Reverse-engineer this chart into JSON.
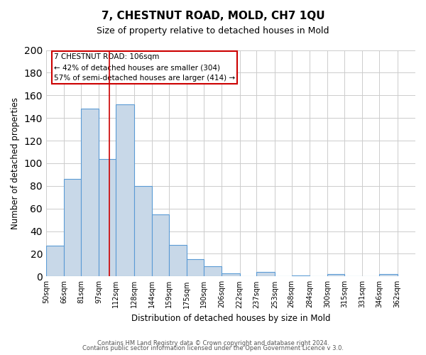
{
  "title": "7, CHESTNUT ROAD, MOLD, CH7 1QU",
  "subtitle": "Size of property relative to detached houses in Mold",
  "xlabel": "Distribution of detached houses by size in Mold",
  "ylabel": "Number of detached properties",
  "bar_values": [
    27,
    86,
    148,
    104,
    152,
    80,
    55,
    28,
    15,
    9,
    3,
    0,
    4,
    0,
    1,
    0,
    2,
    0,
    0,
    2
  ],
  "bin_labels": [
    "50sqm",
    "66sqm",
    "81sqm",
    "97sqm",
    "112sqm",
    "128sqm",
    "144sqm",
    "159sqm",
    "175sqm",
    "190sqm",
    "206sqm",
    "222sqm",
    "237sqm",
    "253sqm",
    "268sqm",
    "284sqm",
    "300sqm",
    "315sqm",
    "331sqm",
    "346sqm",
    "362sqm"
  ],
  "bar_color": "#c8d8e8",
  "bar_edge_color": "#5b9bd5",
  "property_line_x": 106,
  "property_line_color": "#cc0000",
  "annotation_title": "7 CHESTNUT ROAD: 106sqm",
  "annotation_line1": "← 42% of detached houses are smaller (304)",
  "annotation_line2": "57% of semi-detached houses are larger (414) →",
  "annotation_box_color": "#ffffff",
  "annotation_box_edge_color": "#cc0000",
  "ylim": [
    0,
    200
  ],
  "yticks": [
    0,
    20,
    40,
    60,
    80,
    100,
    120,
    140,
    160,
    180,
    200
  ],
  "footer1": "Contains HM Land Registry data © Crown copyright and database right 2024.",
  "footer2": "Contains public sector information licensed under the Open Government Licence v 3.0.",
  "bin_edges": [
    50,
    66,
    81,
    97,
    112,
    128,
    144,
    159,
    175,
    190,
    206,
    222,
    237,
    253,
    268,
    284,
    300,
    315,
    331,
    346,
    362
  ],
  "background_color": "#ffffff",
  "grid_color": "#cccccc"
}
